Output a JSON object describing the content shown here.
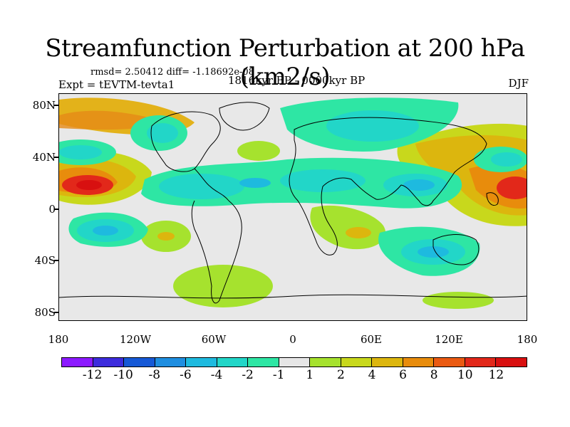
{
  "title": "Streamfunction Perturbation at 200 hPa (km2/s)",
  "stats_line": "rmsd= 2.50412 diff= -1.18692e-08",
  "experiment": "Expt = tEVTM-tevta1",
  "period": "1816kyr BP - 0000kyr BP",
  "season": "DJF",
  "map": {
    "y_axis_labels": [
      "80N",
      "40N",
      "0",
      "40S",
      "80S"
    ],
    "x_axis_labels": [
      "180",
      "120W",
      "60W",
      "0",
      "60E",
      "120E",
      "180"
    ],
    "lat_range": [
      -90,
      90
    ],
    "lon_range": [
      -180,
      180
    ]
  },
  "colorbar": {
    "labels": [
      "-12",
      "-10",
      "-8",
      "-6",
      "-4",
      "-2",
      "-1",
      "1",
      "2",
      "4",
      "6",
      "8",
      "10",
      "12"
    ],
    "colors": [
      "#8c1aff",
      "#3d2cdc",
      "#1659d6",
      "#1f8ee0",
      "#1ebadf",
      "#22d6c8",
      "#2ee6a4",
      "#e6e6e6",
      "#a6e22e",
      "#c8d81c",
      "#dcb60e",
      "#e88c0c",
      "#ea5a12",
      "#e2281a",
      "#d81010"
    ]
  }
}
